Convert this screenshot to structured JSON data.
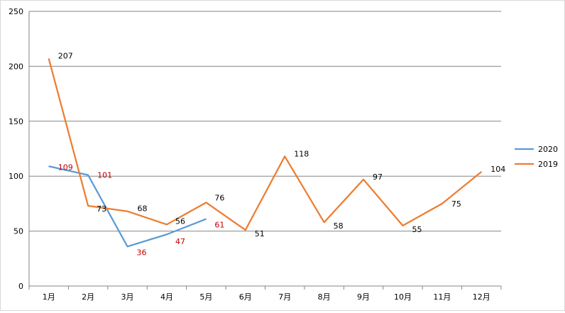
{
  "chart_data": {
    "type": "line",
    "title": "",
    "xlabel": "",
    "ylabel": "",
    "categories": [
      "1月",
      "2月",
      "3月",
      "4月",
      "5月",
      "6月",
      "7月",
      "8月",
      "9月",
      "10月",
      "11月",
      "12月"
    ],
    "ylim": [
      0,
      250
    ],
    "yticks": [
      0,
      50,
      100,
      150,
      200,
      250
    ],
    "grid": true,
    "legend_position": "right",
    "series": [
      {
        "name": "2020",
        "color": "#5b9bd5",
        "label_color": "#c00000",
        "values": [
          109,
          101,
          36,
          47,
          61,
          null,
          null,
          null,
          null,
          null,
          null,
          null
        ]
      },
      {
        "name": "2019",
        "color": "#ed7d31",
        "label_color": "#000000",
        "values": [
          207,
          73,
          68,
          56,
          76,
          51,
          118,
          58,
          97,
          55,
          75,
          104
        ]
      }
    ]
  }
}
